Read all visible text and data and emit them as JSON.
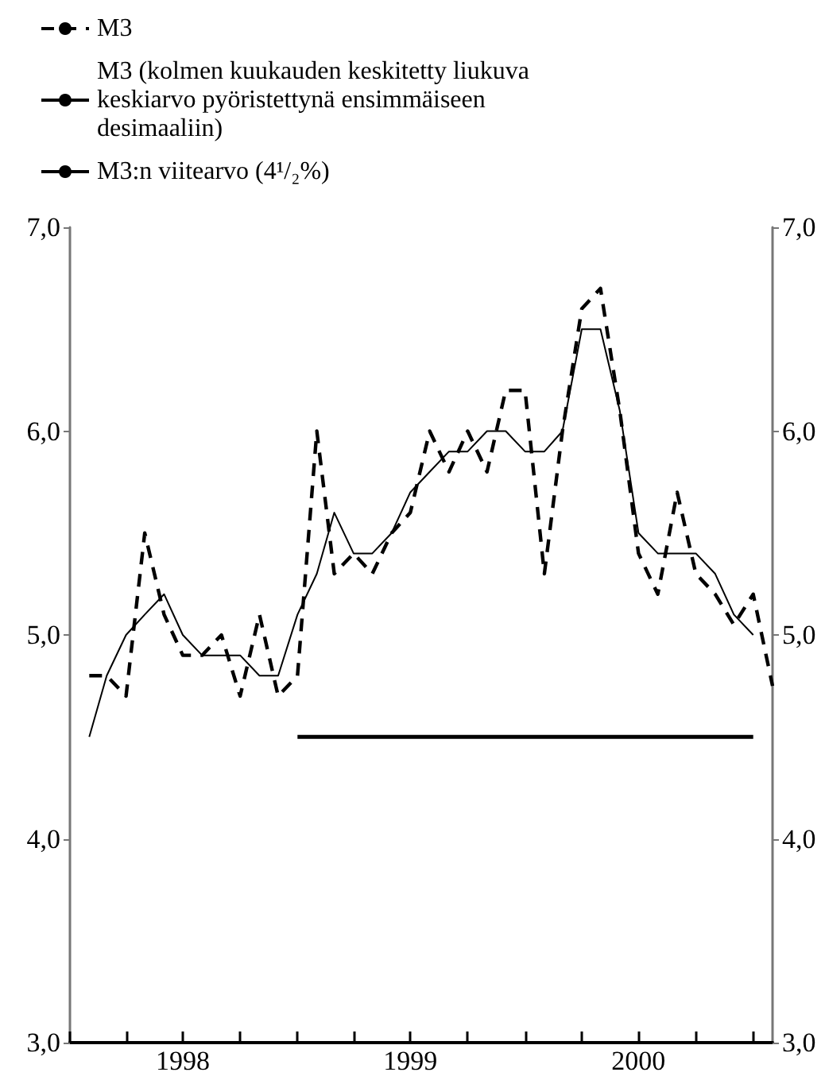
{
  "chart_data": {
    "type": "line",
    "legend": "top left",
    "grid": false,
    "marker": "none",
    "x": [
      "1998-02",
      "1998-03",
      "1998-04",
      "1998-05",
      "1998-06",
      "1998-07",
      "1998-08",
      "1998-09",
      "1998-10",
      "1998-11",
      "1998-12",
      "1999-01",
      "1999-02",
      "1999-03",
      "1999-04",
      "1999-05",
      "1999-06",
      "1999-07",
      "1999-08",
      "1999-09",
      "1999-10",
      "1999-11",
      "1999-12",
      "2000-01",
      "2000-02",
      "2000-03",
      "2000-04",
      "2000-05",
      "2000-06",
      "2000-07",
      "2000-08",
      "2000-09",
      "2000-10",
      "2000-11",
      "2000-12",
      "2001-01",
      "2001-02"
    ],
    "series": [
      {
        "name": "M3",
        "color": "#000000",
        "line_style": "dashed",
        "values": [
          4.8,
          4.8,
          4.7,
          5.5,
          5.1,
          4.9,
          4.9,
          5.0,
          4.7,
          5.1,
          4.7,
          4.8,
          6.0,
          5.3,
          5.4,
          5.3,
          5.5,
          5.6,
          6.0,
          5.8,
          6.0,
          5.8,
          6.2,
          6.2,
          5.3,
          6.0,
          6.6,
          6.7,
          6.1,
          5.4,
          5.2,
          5.7,
          5.3,
          5.2,
          5.05,
          5.2,
          4.75
        ]
      },
      {
        "name": "M3 (kolmen kuukauden keskitetty liukuva keskiarvo pyöristettynä ensimmäiseen desimaaliin)",
        "color": "#000000",
        "line_style": "solid",
        "values": [
          4.5,
          4.8,
          5.0,
          5.1,
          5.2,
          5.0,
          4.9,
          4.9,
          4.9,
          4.8,
          4.8,
          5.1,
          5.3,
          5.6,
          5.4,
          5.4,
          5.5,
          5.7,
          5.8,
          5.9,
          5.9,
          6.0,
          6.0,
          5.9,
          5.9,
          6.0,
          6.5,
          6.5,
          6.1,
          5.5,
          5.4,
          5.4,
          5.4,
          5.3,
          5.1,
          5.0,
          null
        ]
      },
      {
        "name": "M3:n viitearvo (4¹/₂%)",
        "color": "#000000",
        "line_style": "solid",
        "x": [
          "1999-01",
          "2001-01"
        ],
        "values": [
          4.5,
          4.5
        ]
      }
    ],
    "xlim": [
      "1998-01",
      "2001-02"
    ],
    "xticks": [
      {
        "value": "1998-01",
        "label": null
      },
      {
        "value": "1998-04",
        "label": null
      },
      {
        "value": "1998-07",
        "label": "1998"
      },
      {
        "value": "1998-10",
        "label": null
      },
      {
        "value": "1999-01",
        "label": null
      },
      {
        "value": "1999-04",
        "label": null
      },
      {
        "value": "1999-07",
        "label": "1999"
      },
      {
        "value": "1999-10",
        "label": null
      },
      {
        "value": "2000-01",
        "label": null
      },
      {
        "value": "2000-04",
        "label": null
      },
      {
        "value": "2000-07",
        "label": "2000"
      },
      {
        "value": "2000-10",
        "label": null
      },
      {
        "value": "2001-01",
        "label": null
      }
    ],
    "ylim": [
      3,
      7
    ],
    "yticks": [
      {
        "value": 3,
        "label": "3,0"
      },
      {
        "value": 4,
        "label": "4,0"
      },
      {
        "value": 5,
        "label": "5,0"
      },
      {
        "value": 6,
        "label": "6,0"
      },
      {
        "value": 7,
        "label": "7,0"
      }
    ],
    "y2lim": [
      3,
      7
    ],
    "y2ticks": [
      {
        "value": 3,
        "label": "3,0"
      },
      {
        "value": 4,
        "label": "4,0"
      },
      {
        "value": 5,
        "label": "5,0"
      },
      {
        "value": 6,
        "label": "6,0"
      },
      {
        "value": 7,
        "label": "7,0"
      }
    ]
  }
}
